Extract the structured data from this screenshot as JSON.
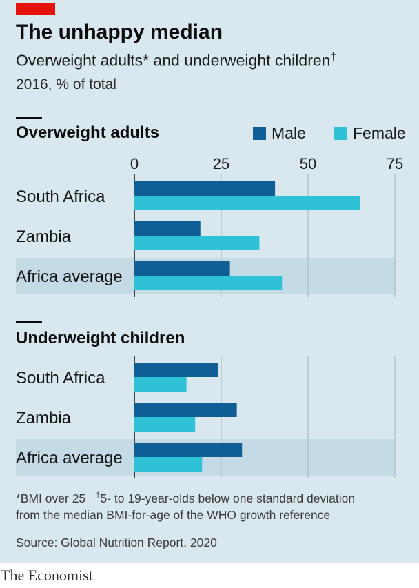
{
  "header": {
    "title": "The unhappy median",
    "subtitle": "Overweight adults* and underweight children",
    "subtitle_mark": "†",
    "units": "2016, % of total"
  },
  "legend": [
    {
      "label": "Male",
      "color": "#0f5f96"
    },
    {
      "label": "Female",
      "color": "#2fc1d6"
    }
  ],
  "colors": {
    "male": "#0f5f96",
    "female": "#2fc1d6",
    "highlight_band": "#c4dbe5",
    "gridline": "#a7bec9",
    "background": "#d9e8ef",
    "brand_red": "#e3120b"
  },
  "chart_data": [
    {
      "type": "bar",
      "orientation": "horizontal",
      "title": "Overweight adults",
      "categories": [
        "South Africa",
        "Zambia",
        "Africa average"
      ],
      "highlighted_category": "Africa average",
      "series": [
        {
          "name": "Male",
          "values": [
            40.5,
            19,
            27.5
          ]
        },
        {
          "name": "Female",
          "values": [
            65,
            36,
            42.5
          ]
        }
      ],
      "xlim": [
        0,
        75
      ],
      "xticks": [
        0,
        25,
        50,
        75
      ],
      "gridlines": true,
      "legend_position": "top-right"
    },
    {
      "type": "bar",
      "orientation": "horizontal",
      "title": "Underweight children",
      "categories": [
        "South Africa",
        "Zambia",
        "Africa average"
      ],
      "highlighted_category": "Africa average",
      "series": [
        {
          "name": "Male",
          "values": [
            24,
            29.5,
            31
          ]
        },
        {
          "name": "Female",
          "values": [
            15,
            17.5,
            19.5
          ]
        }
      ],
      "xlim": [
        0,
        75
      ],
      "xticks": [
        0,
        25,
        50,
        75
      ],
      "gridlines": true
    }
  ],
  "footnotes": {
    "note1": "*BMI over 25",
    "note2_mark": "†",
    "note2_line1": "5- to 19-year-olds below one standard deviation",
    "note2_line2": "from the median BMI-for-age of the WHO growth reference"
  },
  "source": "Source: Global Nutrition Report, 2020",
  "brand": "The Economist"
}
